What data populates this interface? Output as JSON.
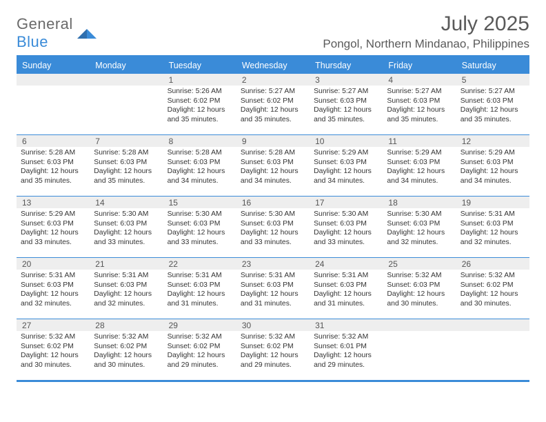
{
  "brand": {
    "top": "General",
    "bottom": "Blue"
  },
  "title": "July 2025",
  "location": "Pongol, Northern Mindanao, Philippines",
  "colors": {
    "accent": "#3a8bd8",
    "band": "#eeeeee",
    "text": "#333333",
    "muted": "#5a5a5a",
    "white": "#ffffff"
  },
  "day_headers": [
    "Sunday",
    "Monday",
    "Tuesday",
    "Wednesday",
    "Thursday",
    "Friday",
    "Saturday"
  ],
  "weeks": [
    [
      {
        "num": "",
        "sunrise": "",
        "sunset": "",
        "day1": "",
        "day2": ""
      },
      {
        "num": "",
        "sunrise": "",
        "sunset": "",
        "day1": "",
        "day2": ""
      },
      {
        "num": "1",
        "sunrise": "Sunrise: 5:26 AM",
        "sunset": "Sunset: 6:02 PM",
        "day1": "Daylight: 12 hours",
        "day2": "and 35 minutes."
      },
      {
        "num": "2",
        "sunrise": "Sunrise: 5:27 AM",
        "sunset": "Sunset: 6:02 PM",
        "day1": "Daylight: 12 hours",
        "day2": "and 35 minutes."
      },
      {
        "num": "3",
        "sunrise": "Sunrise: 5:27 AM",
        "sunset": "Sunset: 6:03 PM",
        "day1": "Daylight: 12 hours",
        "day2": "and 35 minutes."
      },
      {
        "num": "4",
        "sunrise": "Sunrise: 5:27 AM",
        "sunset": "Sunset: 6:03 PM",
        "day1": "Daylight: 12 hours",
        "day2": "and 35 minutes."
      },
      {
        "num": "5",
        "sunrise": "Sunrise: 5:27 AM",
        "sunset": "Sunset: 6:03 PM",
        "day1": "Daylight: 12 hours",
        "day2": "and 35 minutes."
      }
    ],
    [
      {
        "num": "6",
        "sunrise": "Sunrise: 5:28 AM",
        "sunset": "Sunset: 6:03 PM",
        "day1": "Daylight: 12 hours",
        "day2": "and 35 minutes."
      },
      {
        "num": "7",
        "sunrise": "Sunrise: 5:28 AM",
        "sunset": "Sunset: 6:03 PM",
        "day1": "Daylight: 12 hours",
        "day2": "and 35 minutes."
      },
      {
        "num": "8",
        "sunrise": "Sunrise: 5:28 AM",
        "sunset": "Sunset: 6:03 PM",
        "day1": "Daylight: 12 hours",
        "day2": "and 34 minutes."
      },
      {
        "num": "9",
        "sunrise": "Sunrise: 5:28 AM",
        "sunset": "Sunset: 6:03 PM",
        "day1": "Daylight: 12 hours",
        "day2": "and 34 minutes."
      },
      {
        "num": "10",
        "sunrise": "Sunrise: 5:29 AM",
        "sunset": "Sunset: 6:03 PM",
        "day1": "Daylight: 12 hours",
        "day2": "and 34 minutes."
      },
      {
        "num": "11",
        "sunrise": "Sunrise: 5:29 AM",
        "sunset": "Sunset: 6:03 PM",
        "day1": "Daylight: 12 hours",
        "day2": "and 34 minutes."
      },
      {
        "num": "12",
        "sunrise": "Sunrise: 5:29 AM",
        "sunset": "Sunset: 6:03 PM",
        "day1": "Daylight: 12 hours",
        "day2": "and 34 minutes."
      }
    ],
    [
      {
        "num": "13",
        "sunrise": "Sunrise: 5:29 AM",
        "sunset": "Sunset: 6:03 PM",
        "day1": "Daylight: 12 hours",
        "day2": "and 33 minutes."
      },
      {
        "num": "14",
        "sunrise": "Sunrise: 5:30 AM",
        "sunset": "Sunset: 6:03 PM",
        "day1": "Daylight: 12 hours",
        "day2": "and 33 minutes."
      },
      {
        "num": "15",
        "sunrise": "Sunrise: 5:30 AM",
        "sunset": "Sunset: 6:03 PM",
        "day1": "Daylight: 12 hours",
        "day2": "and 33 minutes."
      },
      {
        "num": "16",
        "sunrise": "Sunrise: 5:30 AM",
        "sunset": "Sunset: 6:03 PM",
        "day1": "Daylight: 12 hours",
        "day2": "and 33 minutes."
      },
      {
        "num": "17",
        "sunrise": "Sunrise: 5:30 AM",
        "sunset": "Sunset: 6:03 PM",
        "day1": "Daylight: 12 hours",
        "day2": "and 33 minutes."
      },
      {
        "num": "18",
        "sunrise": "Sunrise: 5:30 AM",
        "sunset": "Sunset: 6:03 PM",
        "day1": "Daylight: 12 hours",
        "day2": "and 32 minutes."
      },
      {
        "num": "19",
        "sunrise": "Sunrise: 5:31 AM",
        "sunset": "Sunset: 6:03 PM",
        "day1": "Daylight: 12 hours",
        "day2": "and 32 minutes."
      }
    ],
    [
      {
        "num": "20",
        "sunrise": "Sunrise: 5:31 AM",
        "sunset": "Sunset: 6:03 PM",
        "day1": "Daylight: 12 hours",
        "day2": "and 32 minutes."
      },
      {
        "num": "21",
        "sunrise": "Sunrise: 5:31 AM",
        "sunset": "Sunset: 6:03 PM",
        "day1": "Daylight: 12 hours",
        "day2": "and 32 minutes."
      },
      {
        "num": "22",
        "sunrise": "Sunrise: 5:31 AM",
        "sunset": "Sunset: 6:03 PM",
        "day1": "Daylight: 12 hours",
        "day2": "and 31 minutes."
      },
      {
        "num": "23",
        "sunrise": "Sunrise: 5:31 AM",
        "sunset": "Sunset: 6:03 PM",
        "day1": "Daylight: 12 hours",
        "day2": "and 31 minutes."
      },
      {
        "num": "24",
        "sunrise": "Sunrise: 5:31 AM",
        "sunset": "Sunset: 6:03 PM",
        "day1": "Daylight: 12 hours",
        "day2": "and 31 minutes."
      },
      {
        "num": "25",
        "sunrise": "Sunrise: 5:32 AM",
        "sunset": "Sunset: 6:03 PM",
        "day1": "Daylight: 12 hours",
        "day2": "and 30 minutes."
      },
      {
        "num": "26",
        "sunrise": "Sunrise: 5:32 AM",
        "sunset": "Sunset: 6:02 PM",
        "day1": "Daylight: 12 hours",
        "day2": "and 30 minutes."
      }
    ],
    [
      {
        "num": "27",
        "sunrise": "Sunrise: 5:32 AM",
        "sunset": "Sunset: 6:02 PM",
        "day1": "Daylight: 12 hours",
        "day2": "and 30 minutes."
      },
      {
        "num": "28",
        "sunrise": "Sunrise: 5:32 AM",
        "sunset": "Sunset: 6:02 PM",
        "day1": "Daylight: 12 hours",
        "day2": "and 30 minutes."
      },
      {
        "num": "29",
        "sunrise": "Sunrise: 5:32 AM",
        "sunset": "Sunset: 6:02 PM",
        "day1": "Daylight: 12 hours",
        "day2": "and 29 minutes."
      },
      {
        "num": "30",
        "sunrise": "Sunrise: 5:32 AM",
        "sunset": "Sunset: 6:02 PM",
        "day1": "Daylight: 12 hours",
        "day2": "and 29 minutes."
      },
      {
        "num": "31",
        "sunrise": "Sunrise: 5:32 AM",
        "sunset": "Sunset: 6:01 PM",
        "day1": "Daylight: 12 hours",
        "day2": "and 29 minutes."
      },
      {
        "num": "",
        "sunrise": "",
        "sunset": "",
        "day1": "",
        "day2": ""
      },
      {
        "num": "",
        "sunrise": "",
        "sunset": "",
        "day1": "",
        "day2": ""
      }
    ]
  ]
}
